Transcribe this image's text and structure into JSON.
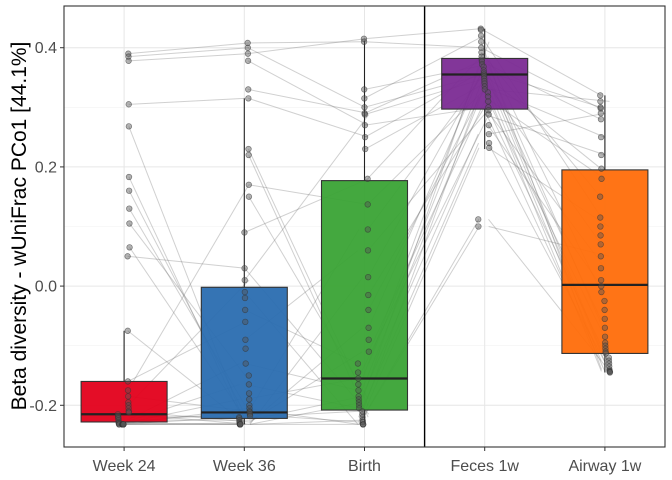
{
  "chart_data": {
    "type": "boxplot",
    "ylabel": "Beta diversity - wUniFrac PCo1 [44.1%]",
    "xlabel": "",
    "ylim": [
      -0.27,
      0.47
    ],
    "y_ticks": [
      "-0.2",
      "0.0",
      "0.2",
      "0.4"
    ],
    "y_tick_values": [
      -0.2,
      0.0,
      0.2,
      0.4
    ],
    "grid": true,
    "separator_after_category": "Birth",
    "categories": [
      "Week 24",
      "Week 36",
      "Birth",
      "Feces 1w",
      "Airway 1w"
    ],
    "boxes": [
      {
        "category": "Week 24",
        "color": "#e3001b",
        "q1": -0.228,
        "median": -0.215,
        "q3": -0.16,
        "whisker_low": -0.232,
        "whisker_high": -0.075
      },
      {
        "category": "Week 36",
        "color": "#2a6db0",
        "q1": -0.222,
        "median": -0.212,
        "q3": -0.002,
        "whisker_low": -0.232,
        "whisker_high": 0.315
      },
      {
        "category": "Birth",
        "color": "#3aa335",
        "q1": -0.208,
        "median": -0.155,
        "q3": 0.177,
        "whisker_low": -0.232,
        "whisker_high": 0.412
      },
      {
        "category": "Feces 1w",
        "color": "#7b2b93",
        "q1": 0.297,
        "median": 0.355,
        "q3": 0.382,
        "whisker_low": 0.23,
        "whisker_high": 0.432
      },
      {
        "category": "Airway 1w",
        "color": "#ff6d0a",
        "q1": -0.113,
        "median": 0.002,
        "q3": 0.195,
        "whisker_low": -0.145,
        "whisker_high": 0.32
      }
    ],
    "points": {
      "Week 24": [
        0.39,
        0.385,
        0.378,
        0.305,
        0.268,
        0.183,
        0.16,
        0.13,
        0.105,
        0.065,
        0.05,
        -0.075,
        -0.16,
        -0.175,
        -0.185,
        -0.195,
        -0.2,
        -0.205,
        -0.21,
        -0.212,
        -0.215,
        -0.218,
        -0.22,
        -0.222,
        -0.225,
        -0.228,
        -0.23,
        -0.23,
        -0.232,
        -0.232,
        -0.232,
        -0.232,
        -0.232,
        -0.232,
        -0.232,
        -0.232,
        -0.232,
        -0.232,
        -0.232,
        -0.232
      ],
      "Week 36": [
        0.408,
        0.4,
        0.39,
        0.378,
        0.33,
        0.315,
        0.23,
        0.22,
        0.17,
        0.15,
        0.09,
        0.03,
        0.01,
        -0.01,
        -0.02,
        -0.04,
        -0.06,
        -0.09,
        -0.105,
        -0.13,
        -0.15,
        -0.165,
        -0.18,
        -0.19,
        -0.2,
        -0.205,
        -0.21,
        -0.212,
        -0.215,
        -0.218,
        -0.22,
        -0.222,
        -0.225,
        -0.228,
        -0.23,
        -0.232,
        -0.232,
        -0.232,
        -0.232,
        -0.232
      ],
      "Birth": [
        0.415,
        0.41,
        0.33,
        0.315,
        0.3,
        0.29,
        0.288,
        0.27,
        0.25,
        0.23,
        0.18,
        0.137,
        0.095,
        0.06,
        0.015,
        -0.015,
        -0.04,
        -0.07,
        -0.09,
        -0.11,
        -0.13,
        -0.145,
        -0.155,
        -0.165,
        -0.175,
        -0.185,
        -0.19,
        -0.195,
        -0.2,
        -0.205,
        -0.21,
        -0.215,
        -0.22,
        -0.225,
        -0.228,
        -0.232,
        -0.232,
        -0.232
      ],
      "Feces 1w": [
        0.432,
        0.43,
        0.42,
        0.41,
        0.4,
        0.392,
        0.385,
        0.38,
        0.377,
        0.372,
        0.368,
        0.362,
        0.358,
        0.355,
        0.352,
        0.348,
        0.344,
        0.34,
        0.335,
        0.33,
        0.325,
        0.318,
        0.31,
        0.3,
        0.295,
        0.288,
        0.27,
        0.255,
        0.24,
        0.232,
        0.112,
        0.1
      ],
      "Airway 1w": [
        0.32,
        0.31,
        0.3,
        0.298,
        0.29,
        0.28,
        0.25,
        0.22,
        0.197,
        0.18,
        0.15,
        0.115,
        0.1,
        0.085,
        0.07,
        0.05,
        0.03,
        0.01,
        0.0,
        -0.01,
        -0.025,
        -0.04,
        -0.055,
        -0.07,
        -0.085,
        -0.095,
        -0.1,
        -0.105,
        -0.11,
        -0.113,
        -0.12,
        -0.125,
        -0.13,
        -0.135,
        -0.14,
        -0.142,
        -0.143,
        -0.144,
        -0.145
      ]
    },
    "connections": {
      "Week 24->Week 36": [
        [
          0.39,
          0.408
        ],
        [
          0.385,
          0.4
        ],
        [
          0.378,
          0.39
        ],
        [
          0.305,
          0.315
        ],
        [
          0.268,
          -0.23
        ],
        [
          0.183,
          -0.232
        ],
        [
          0.16,
          -0.215
        ],
        [
          0.13,
          -0.2
        ],
        [
          0.105,
          -0.15
        ],
        [
          0.065,
          -0.222
        ],
        [
          0.05,
          0.03
        ],
        [
          -0.075,
          -0.232
        ],
        [
          -0.16,
          -0.06
        ],
        [
          -0.175,
          0.17
        ],
        [
          -0.185,
          -0.21
        ],
        [
          -0.2,
          0.01
        ],
        [
          -0.21,
          -0.228
        ],
        [
          -0.215,
          -0.232
        ],
        [
          -0.22,
          -0.218
        ],
        [
          -0.225,
          -0.225
        ],
        [
          -0.228,
          -0.212
        ],
        [
          -0.23,
          -0.232
        ],
        [
          -0.232,
          -0.205
        ],
        [
          -0.232,
          -0.232
        ],
        [
          -0.232,
          -0.23
        ],
        [
          -0.232,
          -0.22
        ],
        [
          -0.232,
          -0.19
        ],
        [
          -0.232,
          -0.165
        ],
        [
          -0.232,
          -0.13
        ],
        [
          -0.232,
          -0.232
        ]
      ],
      "Week 36->Birth": [
        [
          0.408,
          0.41
        ],
        [
          0.4,
          0.3
        ],
        [
          0.39,
          0.415
        ],
        [
          0.378,
          0.27
        ],
        [
          0.33,
          0.29
        ],
        [
          0.315,
          0.25
        ],
        [
          0.23,
          -0.2
        ],
        [
          0.22,
          -0.22
        ],
        [
          0.17,
          0.137
        ],
        [
          0.15,
          -0.19
        ],
        [
          0.09,
          0.18
        ],
        [
          0.03,
          -0.215
        ],
        [
          0.01,
          0.288
        ],
        [
          -0.01,
          -0.232
        ],
        [
          -0.04,
          -0.13
        ],
        [
          -0.09,
          0.06
        ],
        [
          -0.13,
          -0.175
        ],
        [
          -0.165,
          -0.205
        ],
        [
          -0.19,
          -0.155
        ],
        [
          -0.205,
          -0.232
        ],
        [
          -0.21,
          0.095
        ],
        [
          -0.215,
          -0.228
        ],
        [
          -0.22,
          -0.21
        ],
        [
          -0.225,
          -0.185
        ],
        [
          -0.228,
          -0.11
        ],
        [
          -0.23,
          -0.07
        ],
        [
          -0.232,
          -0.225
        ],
        [
          -0.232,
          -0.195
        ],
        [
          -0.232,
          0.015
        ],
        [
          -0.232,
          -0.232
        ]
      ],
      "Birth->Feces 1w": [
        [
          0.415,
          0.432
        ],
        [
          0.41,
          0.4
        ],
        [
          0.33,
          0.37
        ],
        [
          0.315,
          0.42
        ],
        [
          0.3,
          0.355
        ],
        [
          0.29,
          0.38
        ],
        [
          0.288,
          0.348
        ],
        [
          0.27,
          0.3
        ],
        [
          0.25,
          0.362
        ],
        [
          0.23,
          0.34
        ],
        [
          0.18,
          0.392
        ],
        [
          0.137,
          0.33
        ],
        [
          0.095,
          0.358
        ],
        [
          0.06,
          0.295
        ],
        [
          0.015,
          0.377
        ],
        [
          -0.015,
          0.31
        ],
        [
          -0.04,
          0.344
        ],
        [
          -0.07,
          0.385
        ],
        [
          -0.11,
          0.325
        ],
        [
          -0.13,
          0.372
        ],
        [
          -0.155,
          0.288
        ],
        [
          -0.175,
          0.41
        ],
        [
          -0.19,
          0.352
        ],
        [
          -0.2,
          0.255
        ],
        [
          -0.21,
          0.368
        ],
        [
          -0.22,
          0.24
        ],
        [
          -0.228,
          0.318
        ],
        [
          -0.232,
          0.112
        ],
        [
          -0.232,
          0.232
        ],
        [
          -0.232,
          0.1
        ]
      ],
      "Feces 1w->Airway 1w": [
        [
          0.432,
          0.32
        ],
        [
          0.42,
          0.115
        ],
        [
          0.41,
          -0.14
        ],
        [
          0.4,
          0.298
        ],
        [
          0.392,
          0.15
        ],
        [
          0.385,
          -0.105
        ],
        [
          0.377,
          0.28
        ],
        [
          0.372,
          -0.055
        ],
        [
          0.362,
          0.3
        ],
        [
          0.358,
          0.197
        ],
        [
          0.352,
          -0.125
        ],
        [
          0.348,
          0.07
        ],
        [
          0.34,
          -0.143
        ],
        [
          0.335,
          0.25
        ],
        [
          0.325,
          -0.085
        ],
        [
          0.318,
          0.18
        ],
        [
          0.31,
          -0.113
        ],
        [
          0.3,
          0.03
        ],
        [
          0.295,
          -0.144
        ],
        [
          0.288,
          0.22
        ],
        [
          0.27,
          -0.01
        ],
        [
          0.255,
          0.29
        ],
        [
          0.24,
          -0.13
        ],
        [
          0.232,
          0.1
        ],
        [
          0.112,
          -0.142
        ],
        [
          0.1,
          0.05
        ],
        [
          0.344,
          -0.145
        ],
        [
          0.368,
          -0.095
        ],
        [
          0.33,
          0.31
        ],
        [
          0.38,
          -0.04
        ]
      ]
    }
  }
}
